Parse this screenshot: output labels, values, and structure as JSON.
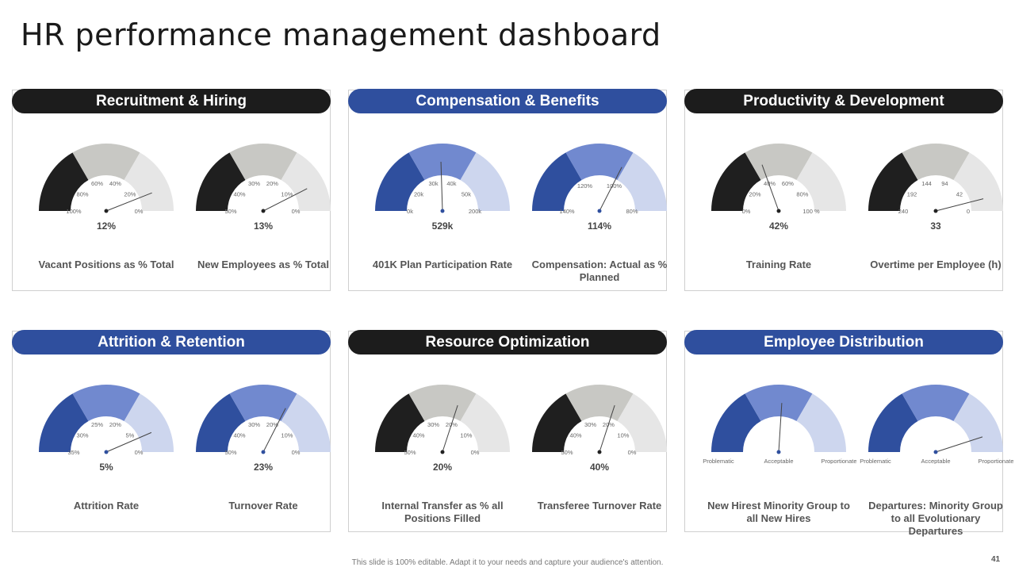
{
  "title": "HR performance management dashboard",
  "footer": {
    "note": "This slide is 100% editable. Adapt it to your needs and capture your audience's attention.",
    "page_number": "41"
  },
  "palettes": {
    "dark": [
      "#1f1f1f",
      "#c8c8c4",
      "#e6e6e6"
    ],
    "blue": [
      "#2f4f9e",
      "#7189cf",
      "#cdd6ee"
    ]
  },
  "panels": [
    {
      "title": "Recruitment & Hiring",
      "header_color": "dark",
      "gauges": [
        {
          "label": "Vacant Positions  as % Total",
          "value": "12%",
          "palette": "dark",
          "fraction": 0.88,
          "ticks": [
            "100%",
            "80%",
            "60%",
            "40%",
            "20%",
            "0%"
          ]
        },
        {
          "label": "New Employees as % Total",
          "value": "13%",
          "palette": "dark",
          "fraction": 0.85,
          "ticks": [
            "50%",
            "40%",
            "30%",
            "20%",
            "10%",
            "0%"
          ]
        }
      ]
    },
    {
      "title": "Compensation & Benefits",
      "header_color": "blue",
      "gauges": [
        {
          "label": "401K Plan Participation Rate",
          "value": "529k",
          "palette": "blue",
          "fraction": 0.49,
          "ticks": [
            "0k",
            "20k",
            "30k",
            "40k",
            "50k",
            "200k"
          ]
        },
        {
          "label": "Compensation:  Actual as % Planned",
          "value": "114%",
          "palette": "blue",
          "fraction": 0.65,
          "ticks": [
            "140%",
            "120%",
            "100%",
            "80%"
          ]
        }
      ]
    },
    {
      "title": "Productivity & Development",
      "header_color": "dark",
      "gauges": [
        {
          "label": "Training Rate",
          "value": "42%",
          "palette": "dark",
          "fraction": 0.39,
          "ticks": [
            "0%",
            "20%",
            "40%",
            "60%",
            "80%",
            "100 %"
          ]
        },
        {
          "label": "Overtime per Employee (h)",
          "value": "33",
          "palette": "dark",
          "fraction": 0.92,
          "ticks": [
            "240",
            "192",
            "144",
            "94",
            "42",
            "0"
          ]
        }
      ]
    },
    {
      "title": "Attrition & Retention",
      "header_color": "blue",
      "gauges": [
        {
          "label": "Attrition  Rate",
          "value": "5%",
          "palette": "blue",
          "fraction": 0.87,
          "ticks": [
            "35%",
            "30%",
            "25%",
            "20%",
            "5%",
            "0%"
          ]
        },
        {
          "label": "Turnover Rate",
          "value": "23%",
          "palette": "blue",
          "fraction": 0.65,
          "ticks": [
            "50%",
            "40%",
            "30%",
            "20%",
            "10%",
            "0%"
          ]
        }
      ]
    },
    {
      "title": "Resource Optimization",
      "header_color": "dark",
      "gauges": [
        {
          "label": "Internal Transfer as % all Positions Filled",
          "value": "20%",
          "palette": "dark",
          "fraction": 0.6,
          "ticks": [
            "50%",
            "40%",
            "30%",
            "20%",
            "10%",
            "0%"
          ]
        },
        {
          "label": "Transferee Turnover Rate",
          "value": "40%",
          "palette": "dark",
          "fraction": 0.6,
          "ticks": [
            "50%",
            "40%",
            "30%",
            "20%",
            "10%",
            "0%"
          ]
        }
      ]
    },
    {
      "title": "Employee Distribution",
      "header_color": "blue",
      "gauges": [
        {
          "label": "New Hirest Minority Group to all New Hires",
          "value": "",
          "palette": "blue",
          "fraction": 0.52,
          "ticks": [
            "Problematic",
            "Acceptable",
            "Proportionate"
          ]
        },
        {
          "label": "Departures: Minority Group to all Evolutionary Departures",
          "value": "",
          "palette": "blue",
          "fraction": 0.9,
          "ticks": [
            "Problematic",
            "Acceptable",
            "Proportionate"
          ]
        }
      ]
    }
  ],
  "chart_data": [
    {
      "type": "gauge",
      "title": "Vacant Positions  as % Total",
      "value": "12%",
      "needle_fraction": 0.88,
      "ticks": [
        "100%",
        "80%",
        "60%",
        "40%",
        "20%",
        "0%"
      ]
    },
    {
      "type": "gauge",
      "title": "New Employees as % Total",
      "value": "13%",
      "needle_fraction": 0.85,
      "ticks": [
        "50%",
        "40%",
        "30%",
        "20%",
        "10%",
        "0%"
      ]
    },
    {
      "type": "gauge",
      "title": "401K Plan Participation Rate",
      "value": "529k",
      "needle_fraction": 0.49,
      "ticks": [
        "0k",
        "20k",
        "30k",
        "40k",
        "50k",
        "200k"
      ]
    },
    {
      "type": "gauge",
      "title": "Compensation:  Actual as % Planned",
      "value": "114%",
      "needle_fraction": 0.65,
      "ticks": [
        "140%",
        "120%",
        "100%",
        "80%"
      ]
    },
    {
      "type": "gauge",
      "title": "Training Rate",
      "value": "42%",
      "needle_fraction": 0.39,
      "ticks": [
        "0%",
        "20%",
        "40%",
        "60%",
        "80%",
        "100 %"
      ]
    },
    {
      "type": "gauge",
      "title": "Overtime per Employee (h)",
      "value": "33",
      "needle_fraction": 0.92,
      "ticks": [
        "240",
        "192",
        "144",
        "94",
        "42",
        "0"
      ]
    },
    {
      "type": "gauge",
      "title": "Attrition  Rate",
      "value": "5%",
      "needle_fraction": 0.87,
      "ticks": [
        "35%",
        "30%",
        "25%",
        "20%",
        "5%",
        "0%"
      ]
    },
    {
      "type": "gauge",
      "title": "Turnover Rate",
      "value": "23%",
      "needle_fraction": 0.65,
      "ticks": [
        "50%",
        "40%",
        "30%",
        "20%",
        "10%",
        "0%"
      ]
    },
    {
      "type": "gauge",
      "title": "Internal Transfer as % all Positions Filled",
      "value": "20%",
      "needle_fraction": 0.6,
      "ticks": [
        "50%",
        "40%",
        "30%",
        "20%",
        "10%",
        "0%"
      ]
    },
    {
      "type": "gauge",
      "title": "Transferee Turnover Rate",
      "value": "40%",
      "needle_fraction": 0.6,
      "ticks": [
        "50%",
        "40%",
        "30%",
        "20%",
        "10%",
        "0%"
      ]
    },
    {
      "type": "gauge",
      "title": "New Hirest Minority Group to all New Hires",
      "value": "",
      "needle_fraction": 0.52,
      "ticks": [
        "Problematic",
        "Acceptable",
        "Proportionate"
      ]
    },
    {
      "type": "gauge",
      "title": "Departures: Minority Group to all Evolutionary Departures",
      "value": "",
      "needle_fraction": 0.9,
      "ticks": [
        "Problematic",
        "Acceptable",
        "Proportionate"
      ]
    }
  ]
}
